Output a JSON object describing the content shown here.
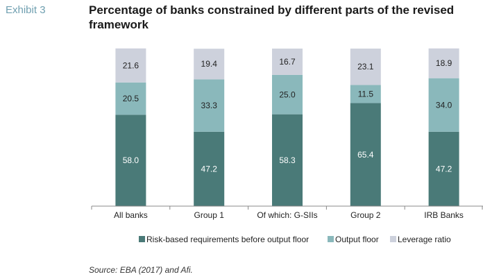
{
  "exhibit_label": "Exhibit 3",
  "chart_data": {
    "type": "bar",
    "stacked": true,
    "title": "Percentage of banks constrained by different parts of the revised framework",
    "categories": [
      "All banks",
      "Group 1",
      "Of which: G-SIIs",
      "Group 2",
      "IRB Banks"
    ],
    "series": [
      {
        "name": "Risk-based requirements before output floor",
        "color": "#4a7a78",
        "values": [
          58.0,
          47.2,
          58.3,
          65.4,
          47.2
        ]
      },
      {
        "name": "Output floor",
        "color": "#8ab8bb",
        "values": [
          20.5,
          33.3,
          25.0,
          11.5,
          34.0
        ]
      },
      {
        "name": "Leverage ratio",
        "color": "#cdd1dc",
        "values": [
          21.6,
          19.4,
          16.7,
          23.1,
          18.9
        ]
      }
    ],
    "ylim": [
      0,
      100
    ],
    "grid": false,
    "legend": "bottom",
    "label_color_dark": "#ffffff",
    "label_color_light": "#222222"
  },
  "source": "Source: EBA (2017) and Afi."
}
